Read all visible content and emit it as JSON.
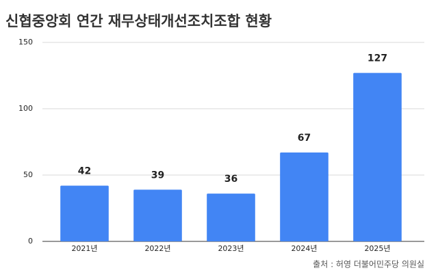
{
  "chart_data": {
    "type": "bar",
    "title": "신협중앙회 연간 재무상태개선조치조합 현황",
    "categories": [
      "2021년",
      "2022년",
      "2023년",
      "2024년",
      "2025년"
    ],
    "values": [
      42,
      39,
      36,
      67,
      127
    ],
    "color": "#4285f4",
    "label_color": "#4285f4",
    "ylim": [
      0,
      150
    ],
    "yticks": [
      0,
      50,
      100,
      150
    ],
    "grid": true,
    "source": "출처 : 허영 더불어민주당 의원실"
  }
}
